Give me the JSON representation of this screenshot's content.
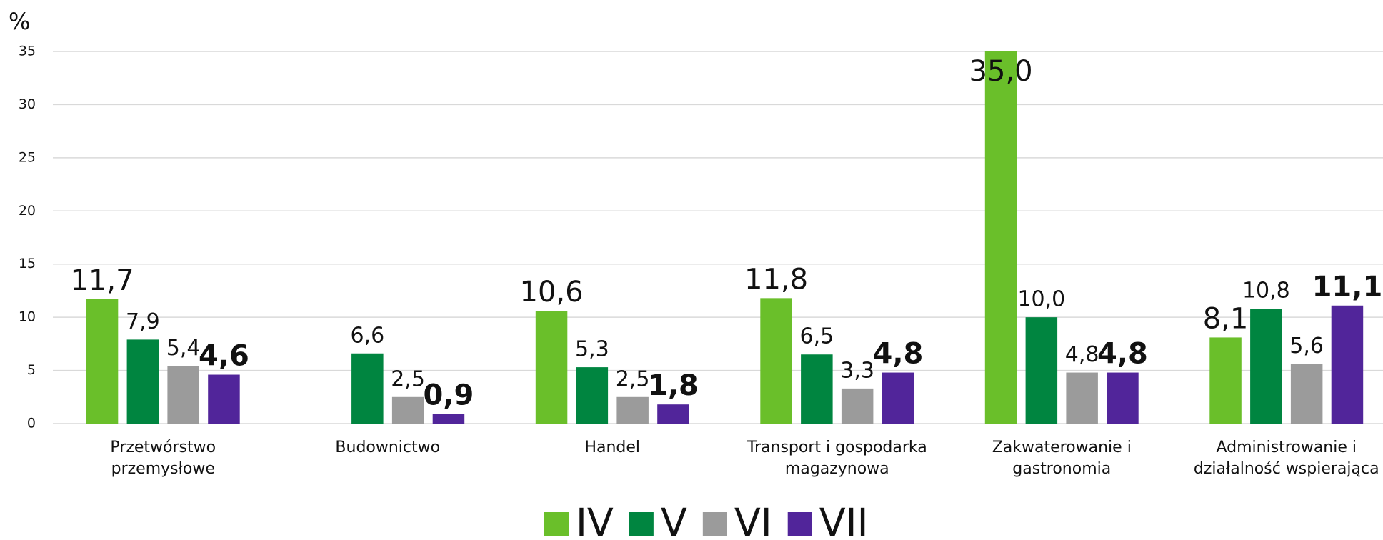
{
  "chart_data": {
    "type": "bar",
    "y_label": "%",
    "categories": [
      "Przetwórstwo przemysłowe",
      "Budownictwo",
      "Handel",
      "Transport i gospodarka magazynowa",
      "Zakwaterowanie i gastronomia",
      "Administrowanie i działalność wspierająca"
    ],
    "series": [
      {
        "name": "IV",
        "color": "#6abf2a",
        "values": [
          11.7,
          null,
          10.6,
          11.8,
          35.0,
          8.1
        ],
        "value_labels": [
          "11,7",
          null,
          "10,6",
          "11,8",
          "35,0",
          "8,1"
        ]
      },
      {
        "name": "V",
        "color": "#008540",
        "values": [
          7.9,
          6.6,
          5.3,
          6.5,
          10.0,
          10.8
        ],
        "value_labels": [
          "7,9",
          "6,6",
          "5,3",
          "6,5",
          "10,0",
          "10,8"
        ]
      },
      {
        "name": "VI",
        "color": "#9b9b9b",
        "values": [
          5.4,
          2.5,
          2.5,
          3.3,
          4.8,
          5.6
        ],
        "value_labels": [
          "5,4",
          "2,5",
          "2,5",
          "3,3",
          "4,8",
          "5,6"
        ]
      },
      {
        "name": "VII",
        "color": "#51259a",
        "values": [
          4.6,
          0.9,
          1.8,
          4.8,
          4.8,
          11.1
        ],
        "value_labels": [
          "4,6",
          "0,9",
          "1,8",
          "4,8",
          "4,8",
          "11,1"
        ]
      }
    ],
    "ylim": [
      0,
      35
    ],
    "yticks": [
      0,
      5,
      10,
      15,
      20,
      25,
      30,
      35
    ],
    "grid": true,
    "legend": "bottom"
  }
}
